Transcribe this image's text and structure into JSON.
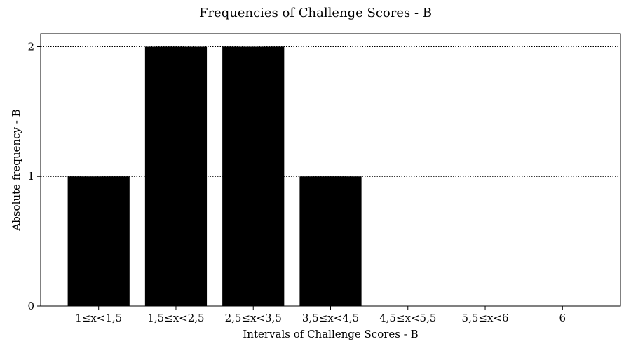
{
  "chart_data": {
    "type": "bar",
    "title": "Frequencies of Challenge Scores - B",
    "xlabel": "Intervals of Challenge Scores - B",
    "ylabel": "Absolute frequency - B",
    "categories": [
      "1≤x<1,5",
      "1,5≤x<2,5",
      "2,5≤x<3,5",
      "3,5≤x<4,5",
      "4,5≤x<5,5",
      "5,5≤x<6",
      "6"
    ],
    "values": [
      1,
      2,
      2,
      1,
      0,
      0,
      0
    ],
    "ylim": [
      0,
      2.1
    ],
    "yticks": [
      0,
      1,
      2
    ],
    "grid": "y-dotted",
    "colors": {
      "bar": "#000000",
      "grid": "#000000",
      "axis": "#000000"
    }
  }
}
